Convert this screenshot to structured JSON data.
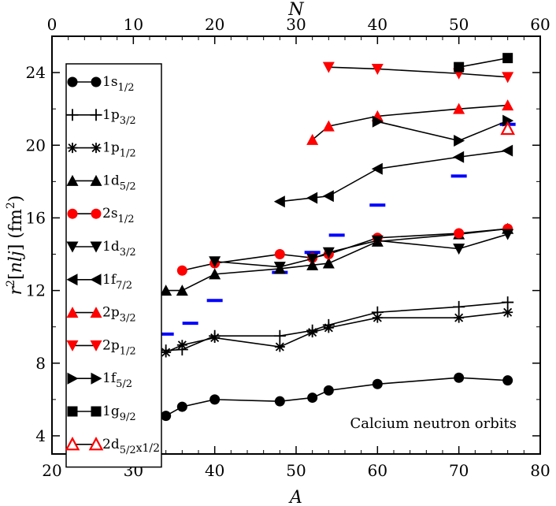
{
  "chart_data": {
    "type": "line",
    "title": "",
    "xlabel": "A",
    "x2label": "N",
    "ylabel_parts": [
      "r",
      "2",
      "[",
      "n",
      "l",
      "j",
      "] (fm",
      "2",
      ")"
    ],
    "xlim": [
      20,
      80
    ],
    "x2lim": [
      0,
      60
    ],
    "ylim": [
      3,
      26
    ],
    "xticks": [
      20,
      30,
      40,
      50,
      60,
      70,
      80
    ],
    "x2ticks": [
      0,
      10,
      20,
      30,
      40,
      50,
      60
    ],
    "yticks": [
      4,
      8,
      12,
      16,
      20,
      24
    ],
    "annotation": "Calcium neutron orbits",
    "colors": {
      "black": "#000000",
      "red": "#ff0000",
      "blue": "#0000ff"
    },
    "series": [
      {
        "name": "1s1/2",
        "label_main": "1s",
        "label_sub": "1/2",
        "label_suffix": "",
        "marker": "circle",
        "color": "black",
        "x": [
          34,
          36,
          40,
          48,
          52,
          54,
          60,
          70,
          76
        ],
        "y": [
          5.1,
          5.6,
          6.0,
          5.9,
          6.1,
          6.5,
          6.85,
          7.2,
          7.05
        ]
      },
      {
        "name": "1p3/2",
        "label_main": "1p",
        "label_sub": "3/2",
        "label_suffix": "",
        "marker": "plus",
        "color": "black",
        "x": [
          34,
          36,
          40,
          48,
          52,
          54,
          60,
          70,
          76
        ],
        "y": [
          8.7,
          8.75,
          9.5,
          9.5,
          9.8,
          10.1,
          10.8,
          11.1,
          11.35
        ]
      },
      {
        "name": "1p1/2",
        "label_main": "1p",
        "label_sub": "1/2",
        "label_suffix": "",
        "marker": "asterisk",
        "color": "black",
        "x": [
          34,
          36,
          40,
          48,
          52,
          54,
          60,
          70,
          76
        ],
        "y": [
          8.6,
          9.0,
          9.4,
          8.9,
          9.7,
          9.95,
          10.5,
          10.5,
          10.8
        ]
      },
      {
        "name": "1d5/2",
        "label_main": "1d",
        "label_sub": "5/2",
        "label_suffix": "",
        "marker": "triangle-up",
        "color": "black",
        "x": [
          34,
          36,
          40,
          48,
          52,
          54,
          60,
          70,
          76
        ],
        "y": [
          12.0,
          12.0,
          12.9,
          13.2,
          13.4,
          13.5,
          14.7,
          15.1,
          15.4
        ]
      },
      {
        "name": "2s1/2",
        "label_main": "2s",
        "label_sub": "1/2",
        "label_suffix": "",
        "marker": "circle",
        "color": "red",
        "x": [
          36,
          40,
          48,
          52,
          54,
          60,
          70,
          76
        ],
        "y": [
          13.1,
          13.5,
          14.0,
          13.8,
          14.0,
          14.9,
          15.15,
          15.4
        ]
      },
      {
        "name": "1d3/2",
        "label_main": "1d",
        "label_sub": "3/2",
        "label_suffix": "",
        "marker": "triangle-down",
        "color": "black",
        "x": [
          40,
          48,
          52,
          54,
          60,
          70,
          76
        ],
        "y": [
          13.6,
          13.3,
          13.75,
          14.1,
          14.75,
          14.3,
          15.1
        ]
      },
      {
        "name": "1f7/2",
        "label_main": "1f",
        "label_sub": "7/2",
        "label_suffix": "",
        "marker": "triangle-left",
        "color": "black",
        "x": [
          48,
          52,
          54,
          60,
          70,
          76
        ],
        "y": [
          16.9,
          17.1,
          17.2,
          18.7,
          19.35,
          19.7
        ]
      },
      {
        "name": "2p3/2",
        "label_main": "2p",
        "label_sub": "3/2",
        "label_suffix": "",
        "marker": "triangle-up",
        "color": "red",
        "x": [
          52,
          54,
          60,
          70,
          76
        ],
        "y": [
          20.3,
          21.05,
          21.6,
          22.0,
          22.2
        ]
      },
      {
        "name": "2p1/2",
        "label_main": "2p",
        "label_sub": "1/2",
        "label_suffix": "",
        "marker": "triangle-down",
        "color": "red",
        "x": [
          54,
          60,
          70,
          76
        ],
        "y": [
          24.3,
          24.2,
          23.95,
          23.75
        ]
      },
      {
        "name": "1f5/2",
        "label_main": "1f",
        "label_sub": "5/2",
        "label_suffix": "",
        "marker": "triangle-right",
        "color": "black",
        "x": [
          60,
          70,
          76
        ],
        "y": [
          21.3,
          20.25,
          21.35
        ]
      },
      {
        "name": "1g9/2",
        "label_main": "1g",
        "label_sub": "9/2",
        "label_suffix": "",
        "marker": "square",
        "color": "black",
        "x": [
          70,
          76
        ],
        "y": [
          24.3,
          24.8
        ]
      },
      {
        "name": "2d5/2x1/2",
        "label_main": "2d",
        "label_sub": "5/2",
        "label_suffix": "x1/2",
        "marker": "triangle-up-open",
        "color": "red",
        "x": [
          76
        ],
        "y": [
          20.9
        ]
      }
    ],
    "blue_dashes": {
      "color": "blue",
      "x": [
        34,
        37,
        40,
        48,
        52,
        55,
        60,
        70,
        76
      ],
      "y": [
        9.6,
        10.2,
        11.45,
        13.0,
        14.1,
        15.05,
        16.7,
        18.3,
        21.15
      ]
    }
  }
}
